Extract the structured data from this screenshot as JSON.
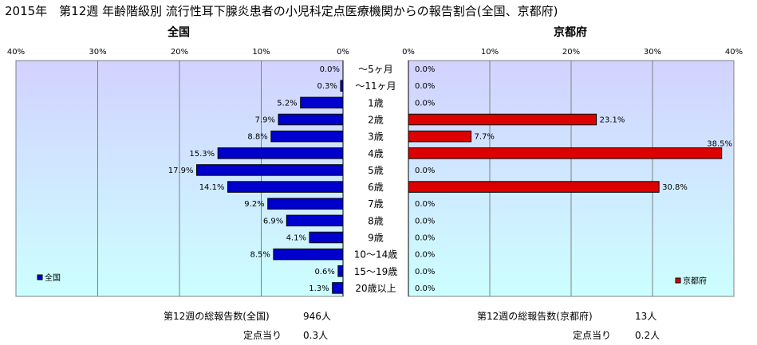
{
  "title": "2015年　第12週 年齢階級別 流行性耳下腺炎患者の小児科定点医療機関からの報告割合(全国、京都府)",
  "colors": {
    "national_bar": "#0000cc",
    "kyoto_bar": "#dd0000",
    "plot_top": "#d2d2ff",
    "plot_bottom": "#ccffff"
  },
  "chart_data": {
    "type": "bar",
    "orientation": "horizontal",
    "categories": [
      "～5ヶ月",
      "～11ヶ月",
      "1歳",
      "2歳",
      "3歳",
      "4歳",
      "5歳",
      "6歳",
      "7歳",
      "8歳",
      "9歳",
      "10～14歳",
      "15～19歳",
      "20歳以上"
    ],
    "xlim": [
      0,
      40
    ],
    "xticks": [
      "40%",
      "30%",
      "20%",
      "10%",
      "0%"
    ],
    "xticks_right": [
      "0%",
      "10%",
      "20%",
      "30%",
      "40%"
    ],
    "series": [
      {
        "name": "全国",
        "panel_title": "全国",
        "legend": "全国",
        "values": [
          0.0,
          0.3,
          5.2,
          7.9,
          8.8,
          15.3,
          17.9,
          14.1,
          9.2,
          6.9,
          4.1,
          8.5,
          0.6,
          1.3
        ],
        "labels": [
          "0.0%",
          "0.3%",
          "5.2%",
          "7.9%",
          "8.8%",
          "15.3%",
          "17.9%",
          "14.1%",
          "9.2%",
          "6.9%",
          "4.1%",
          "8.5%",
          "0.6%",
          "1.3%"
        ]
      },
      {
        "name": "京都府",
        "panel_title": "京都府",
        "legend": "京都府",
        "values": [
          0.0,
          0.0,
          0.0,
          23.1,
          7.7,
          38.5,
          0.0,
          30.8,
          0.0,
          0.0,
          0.0,
          0.0,
          0.0,
          0.0
        ],
        "labels": [
          "0.0%",
          "0.0%",
          "0.0%",
          "23.1%",
          "7.7%",
          "38.5%",
          "0.0%",
          "30.8%",
          "0.0%",
          "0.0%",
          "0.0%",
          "0.0%",
          "0.0%",
          "0.0%"
        ]
      }
    ]
  },
  "footer": {
    "national_total_label": "第12週の総報告数(全国)",
    "national_total_value": "946人",
    "national_per_label": "定点当り",
    "national_per_value": "0.3人",
    "kyoto_total_label": "第12週の総報告数(京都府)",
    "kyoto_total_value": "13人",
    "kyoto_per_label": "定点当り",
    "kyoto_per_value": "0.2人"
  }
}
